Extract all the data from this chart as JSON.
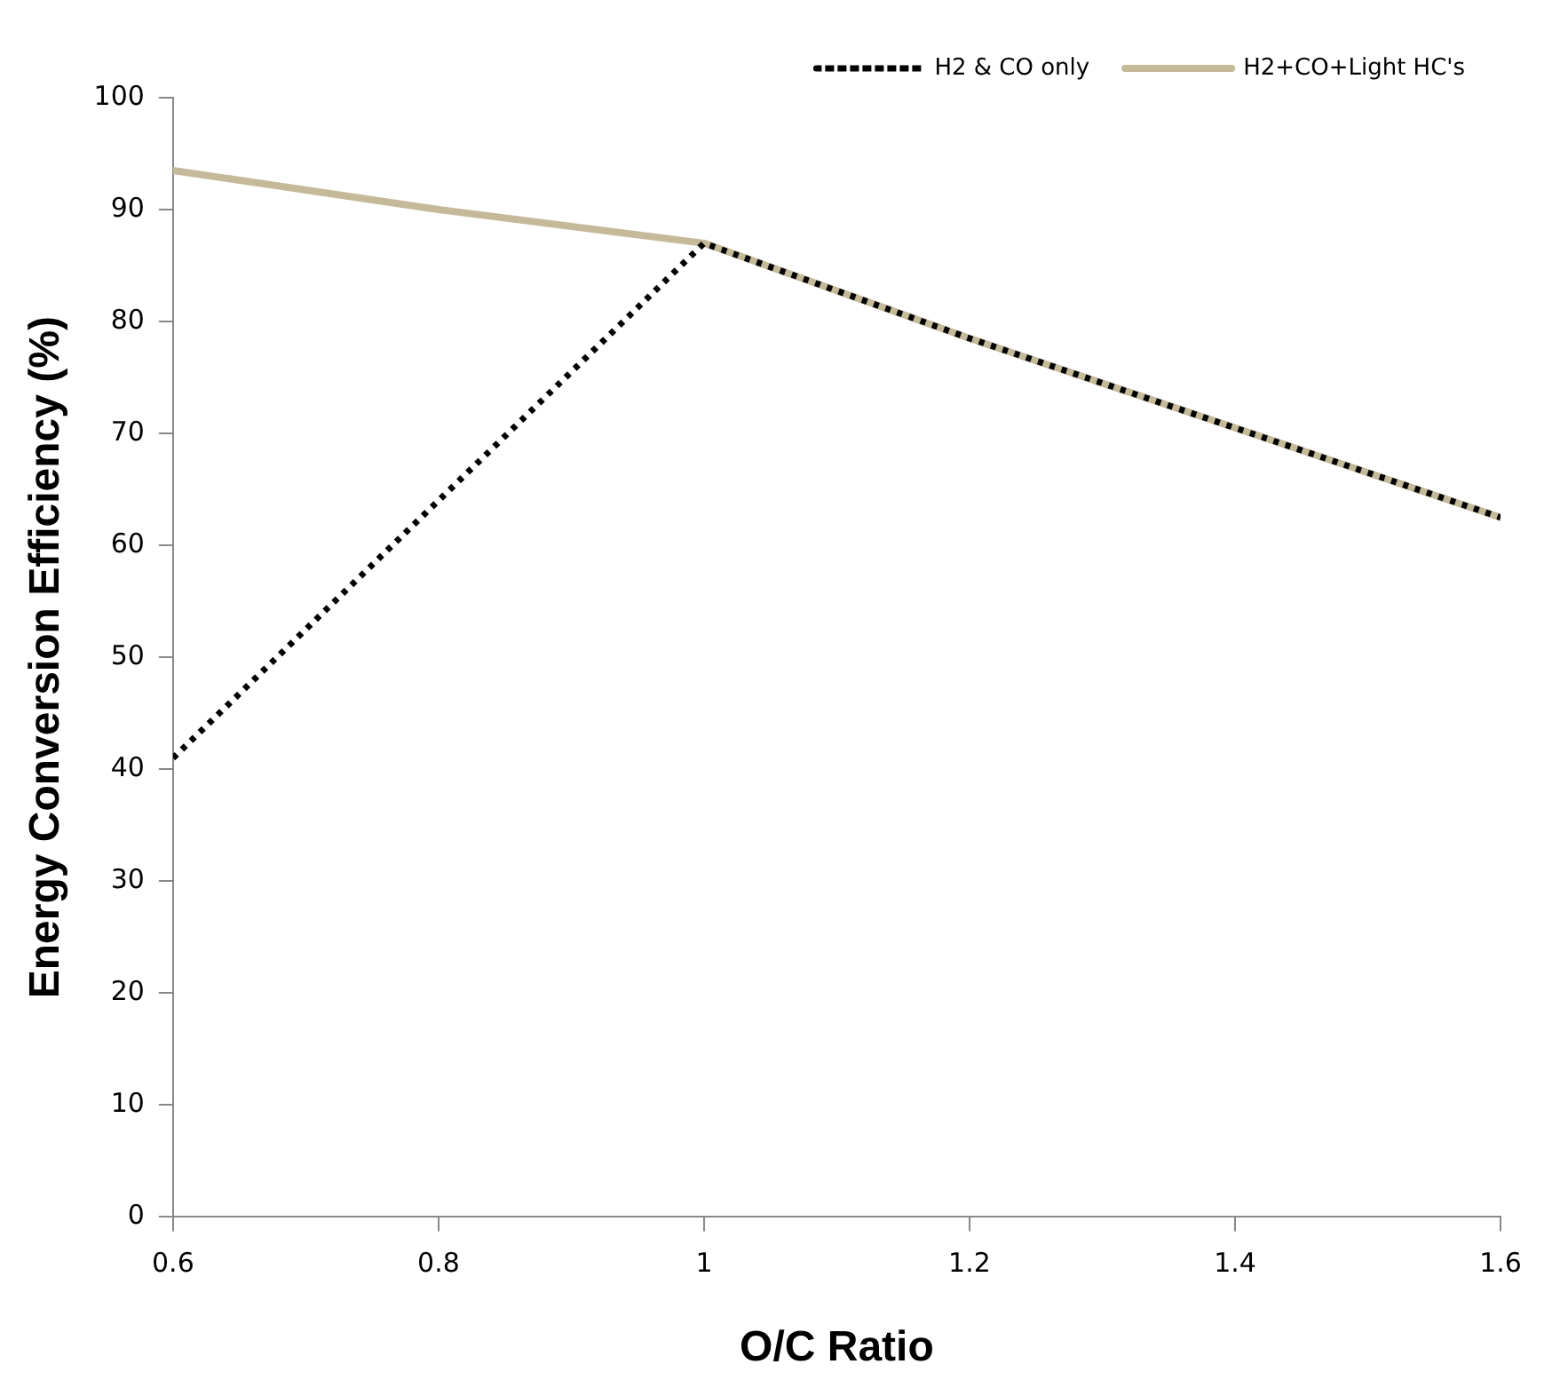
{
  "chart_data": {
    "type": "line",
    "xlabel": "O/C Ratio",
    "ylabel": "Energy Conversion Efficiency (%)",
    "x": [
      0.6,
      0.8,
      1.0,
      1.2,
      1.4,
      1.6
    ],
    "series": [
      {
        "name": "H2+CO+Light HC's",
        "color": "#c4b998",
        "values": [
          93.5,
          90,
          87,
          78.5,
          70.5,
          62.5
        ],
        "line_style": "solid"
      },
      {
        "name": "H2 & CO only",
        "color": "#000000",
        "values": [
          41,
          64,
          87,
          78.5,
          70.5,
          62.5
        ],
        "line_style": "dotted"
      }
    ],
    "xlim": [
      0.6,
      1.6
    ],
    "xticks": [
      0.6,
      0.8,
      1,
      1.2,
      1.4,
      1.6
    ],
    "ylim": [
      0,
      100
    ],
    "yticks": [
      0,
      10,
      20,
      30,
      40,
      50,
      60,
      70,
      80,
      90,
      100
    ],
    "grid": false,
    "legend": "top right",
    "marker": "none"
  }
}
